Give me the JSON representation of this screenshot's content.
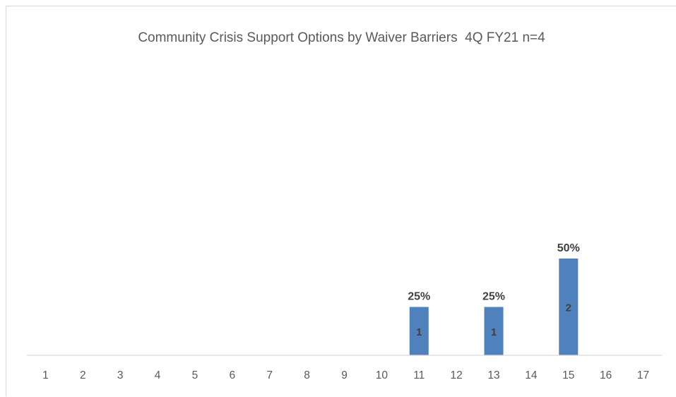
{
  "chart_data": {
    "type": "bar",
    "title": "Community Crisis Support Options by Waiver Barriers  4Q FY21 n=4",
    "xlabel": "",
    "ylabel": "",
    "categories": [
      "1",
      "2",
      "3",
      "4",
      "5",
      "6",
      "7",
      "8",
      "9",
      "10",
      "11",
      "12",
      "13",
      "14",
      "15",
      "16",
      "17"
    ],
    "values": [
      0,
      0,
      0,
      0,
      0,
      0,
      0,
      0,
      0,
      0,
      1,
      0,
      1,
      0,
      2,
      0,
      0
    ],
    "percent_labels": [
      "",
      "",
      "",
      "",
      "",
      "",
      "",
      "",
      "",
      "",
      "25%",
      "",
      "25%",
      "",
      "50%",
      "",
      ""
    ],
    "count_labels": [
      "",
      "",
      "",
      "",
      "",
      "",
      "",
      "",
      "",
      "",
      "1",
      "",
      "1",
      "",
      "2",
      "",
      ""
    ],
    "ylim": [
      0,
      2.2
    ],
    "grid": false,
    "legend": "none",
    "colors": {
      "bar": "#4f81bd",
      "axis": "#d9d9d9",
      "text": "#595959",
      "label": "#404040"
    }
  }
}
